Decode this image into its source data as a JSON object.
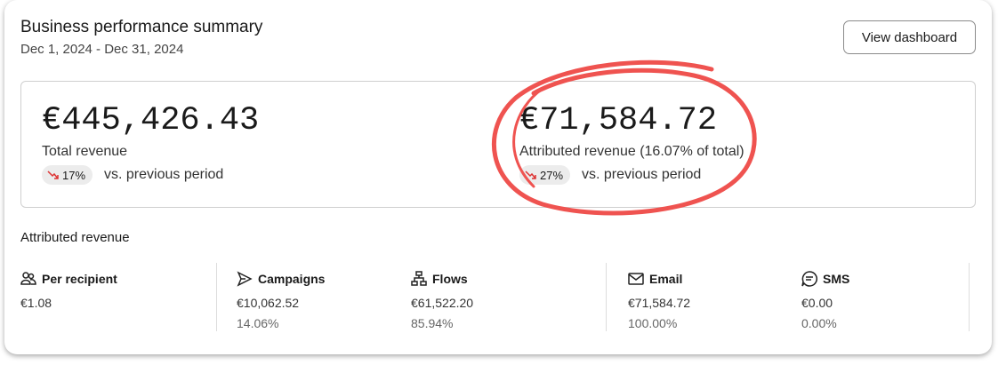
{
  "header": {
    "title": "Business performance summary",
    "date_range": "Dec 1, 2024 - Dec 31, 2024",
    "button": "View dashboard"
  },
  "summary": [
    {
      "amount": "€445,426.43",
      "label": "Total revenue",
      "change": "17%",
      "comparison": "vs. previous period"
    },
    {
      "amount": "€71,584.72",
      "label": "Attributed revenue (16.07% of total)",
      "change": "27%",
      "comparison": "vs. previous period"
    }
  ],
  "attributed": {
    "title": "Attributed revenue",
    "metrics": [
      {
        "label": "Per recipient",
        "value": "€1.08"
      },
      {
        "label": "Campaigns",
        "value": "€10,062.52",
        "share": "14.06%"
      },
      {
        "label": "Flows",
        "value": "€61,522.20",
        "share": "85.94%"
      },
      {
        "label": "Email",
        "value": "€71,584.72",
        "share": "100.00%"
      },
      {
        "label": "SMS",
        "value": "€0.00",
        "share": "0.00%"
      }
    ]
  }
}
